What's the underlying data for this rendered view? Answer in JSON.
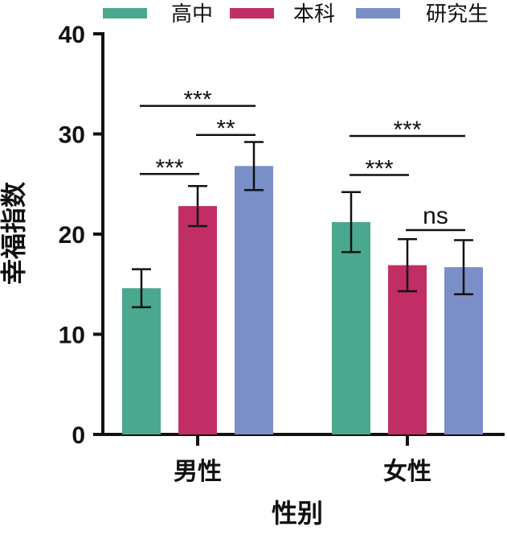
{
  "chart_data": {
    "type": "bar",
    "xlabel": "性别",
    "ylabel": "幸福指数",
    "ylim": [
      0,
      40
    ],
    "yticks": [
      0,
      10,
      20,
      30,
      40
    ],
    "categories": [
      "男性",
      "女性"
    ],
    "series": [
      {
        "name": "高中",
        "color": "#4aa88f",
        "values": [
          14.6,
          21.2
        ],
        "errors": [
          1.9,
          3.0
        ]
      },
      {
        "name": "本科",
        "color": "#c12e66",
        "values": [
          22.8,
          16.9
        ],
        "errors": [
          2.0,
          2.6
        ]
      },
      {
        "name": "研究生",
        "color": "#7a8fc7",
        "values": [
          26.8,
          16.7
        ],
        "errors": [
          2.4,
          2.7
        ]
      }
    ],
    "legend_position": "top",
    "grid": false,
    "annotations": [
      {
        "category": 0,
        "from": 0,
        "to": 1,
        "y": 26.0,
        "label": "***"
      },
      {
        "category": 0,
        "from": 1,
        "to": 2,
        "y": 29.9,
        "label": "**"
      },
      {
        "category": 0,
        "from": 0,
        "to": 2,
        "y": 32.8,
        "label": "***"
      },
      {
        "category": 1,
        "from": 0,
        "to": 1,
        "y": 25.9,
        "label": "***"
      },
      {
        "category": 1,
        "from": 1,
        "to": 2,
        "y": 20.4,
        "label": "ns"
      },
      {
        "category": 1,
        "from": 0,
        "to": 2,
        "y": 29.8,
        "label": "***"
      }
    ]
  }
}
